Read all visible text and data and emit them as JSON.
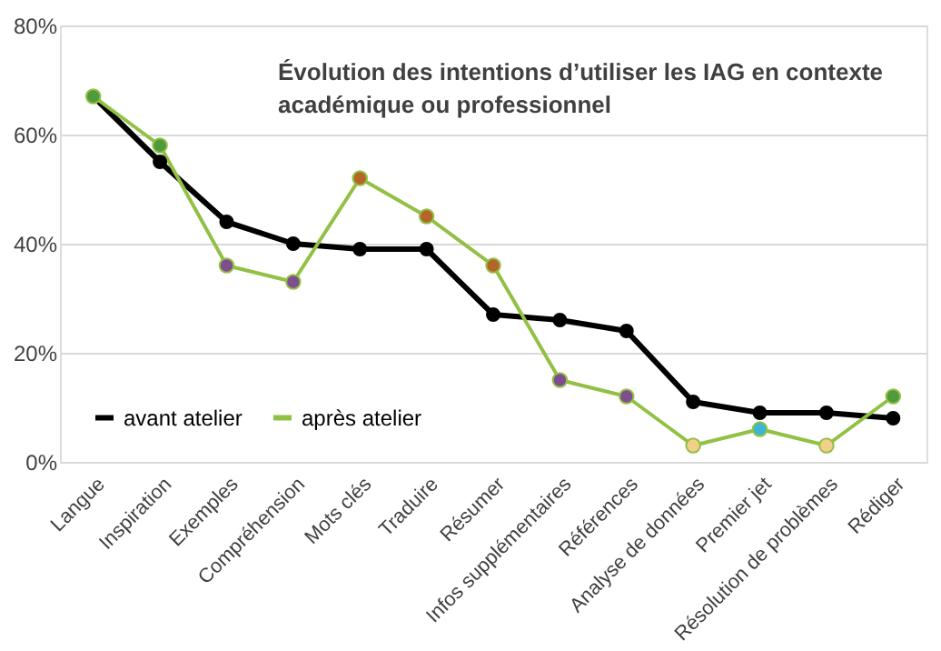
{
  "chart_data": {
    "type": "line",
    "title": "Évolution des intentions d’utiliser les IAG en contexte\nacadémique ou professionnel",
    "categories": [
      "Langue",
      "Inspiration",
      "Exemples",
      "Compréhension",
      "Mots clés",
      "Traduire",
      "Résumer",
      "Infos supplémentaires",
      "Références",
      "Analyse de données",
      "Premier jet",
      "Résolution de problèmes",
      "Rédiger"
    ],
    "series": [
      {
        "name": "avant atelier",
        "color": "#000000",
        "marker": "circle",
        "values": [
          67,
          55,
          44,
          40,
          39,
          39,
          27,
          26,
          24,
          11,
          9,
          9,
          8
        ]
      },
      {
        "name": "après atelier",
        "color": "#92c045",
        "marker": "circle",
        "values": [
          67,
          58,
          36,
          33,
          52,
          45,
          36,
          15,
          12,
          3,
          6,
          3,
          12
        ],
        "colors": [
          "#4f9a3c",
          "#4f9a3c",
          "#7e4e8e",
          "#7e4e8e",
          "#b5652a",
          "#b5652a",
          "#b5652a",
          "#7e4e8e",
          "#7e4e8e",
          "#f2d08a",
          "#3fb5d5",
          "#f2d08a",
          "#4f9a3c"
        ]
      }
    ],
    "ylim": [
      0,
      80
    ],
    "yticks": [
      {
        "value": 0,
        "label": "0%"
      },
      {
        "value": 20,
        "label": "20%"
      },
      {
        "value": 40,
        "label": "40%"
      },
      {
        "value": 60,
        "label": "60%"
      },
      {
        "value": 80,
        "label": "80%"
      }
    ],
    "grid": "y",
    "legend": "bottom left"
  }
}
